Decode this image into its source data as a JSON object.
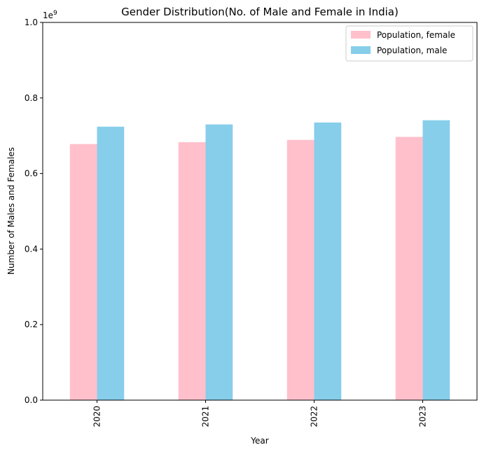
{
  "chart_data": {
    "type": "bar",
    "title": "Gender Distribution(No. of Male and Female in India)",
    "xlabel": "Year",
    "ylabel": "Number of Males and Females",
    "y_multiplier_label": "1e9",
    "categories": [
      "2020",
      "2021",
      "2022",
      "2023"
    ],
    "series": [
      {
        "name": "Population, female",
        "color": "#ffc0cb",
        "values": [
          678000000,
          683000000,
          689000000,
          697000000
        ]
      },
      {
        "name": "Population, male",
        "color": "#87ceeb",
        "values": [
          724000000,
          730000000,
          735000000,
          741000000
        ]
      }
    ],
    "ylim": [
      0,
      1000000000
    ],
    "yticks": [
      {
        "value": 0,
        "label": "0.0"
      },
      {
        "value": 200000000,
        "label": "0.2"
      },
      {
        "value": 400000000,
        "label": "0.4"
      },
      {
        "value": 600000000,
        "label": "0.6"
      },
      {
        "value": 800000000,
        "label": "0.8"
      },
      {
        "value": 1000000000,
        "label": "1.0"
      }
    ],
    "grid": false,
    "legend_position": "top-right"
  }
}
